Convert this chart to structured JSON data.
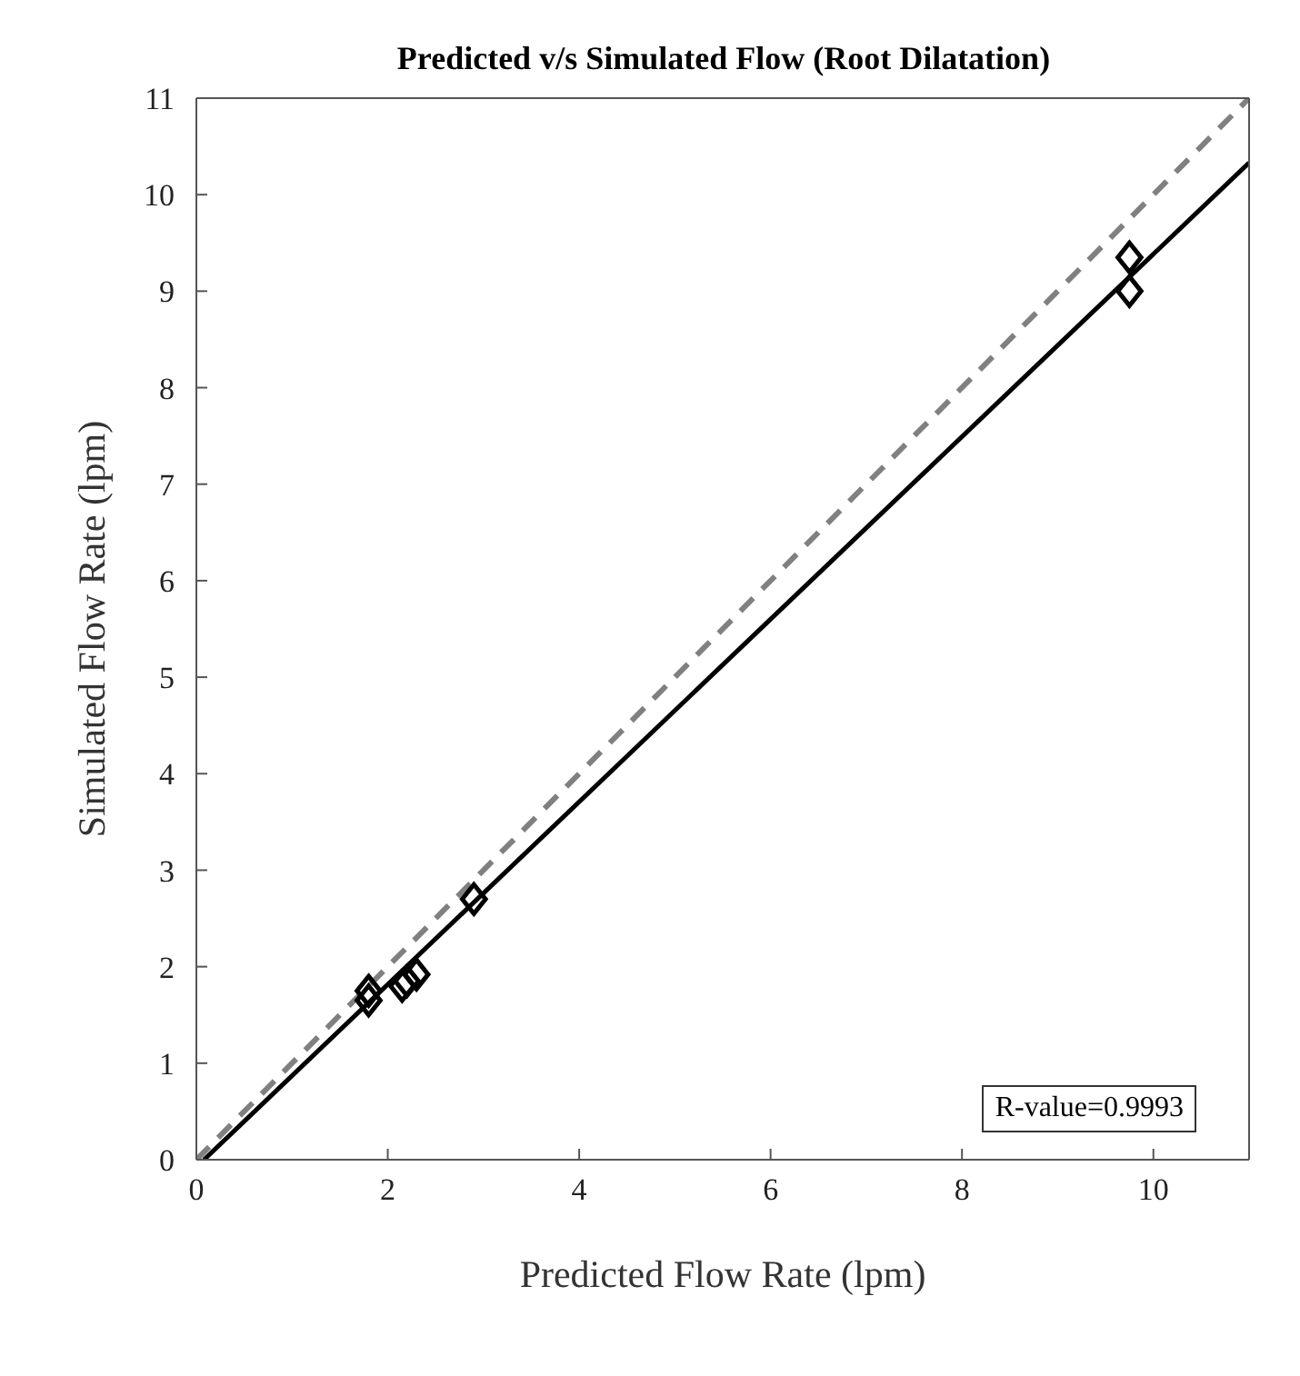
{
  "chart_data": {
    "type": "scatter",
    "title": "Predicted v/s Simulated Flow (Root Dilatation)",
    "xlabel": "Predicted Flow Rate (lpm)",
    "ylabel": "Simulated Flow Rate (lpm)",
    "xlim": [
      0,
      11
    ],
    "ylim": [
      0,
      11
    ],
    "xticks": [
      0,
      2,
      4,
      6,
      8,
      10
    ],
    "yticks": [
      0,
      1,
      2,
      3,
      4,
      5,
      6,
      7,
      8,
      9,
      10,
      11
    ],
    "marker": "diamond",
    "series": [
      {
        "color": "#000000",
        "x": [
          1.8,
          1.8,
          2.15,
          2.2,
          2.3,
          2.9,
          9.75,
          9.75
        ],
        "values": [
          1.75,
          1.65,
          1.8,
          1.85,
          1.92,
          2.7,
          9.35,
          9.0
        ]
      },
      {
        "type": "line",
        "color": "#000000",
        "line_style": "solid",
        "marker": "none",
        "x": [
          0.08,
          11
        ],
        "values": [
          0,
          10.33
        ]
      },
      {
        "type": "line",
        "color": "#808080",
        "line_style": "dashed",
        "marker": "none",
        "x": [
          0,
          11
        ],
        "values": [
          0,
          11
        ]
      }
    ],
    "annotations": [
      "R-value=0.9993"
    ]
  }
}
